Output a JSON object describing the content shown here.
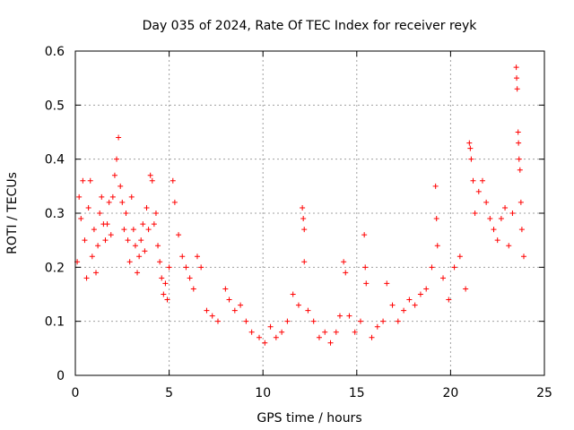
{
  "chart_data": {
    "type": "scatter",
    "title": "Day 035 of 2024, Rate Of TEC Index for receiver reyk",
    "xlabel": "GPS time / hours",
    "ylabel": "ROTI / TECUs",
    "xlim": [
      0,
      25
    ],
    "ylim": [
      0,
      0.6
    ],
    "grid": true,
    "marker": "plus",
    "series_color": "#ff0000",
    "x_ticks": [
      0,
      5,
      10,
      15,
      20,
      25
    ],
    "x_tick_labels": [
      "0",
      "5",
      "10",
      "15",
      "20",
      "25"
    ],
    "y_ticks": [
      0,
      0.1,
      0.2,
      0.3,
      0.4,
      0.5,
      0.6
    ],
    "y_tick_labels": [
      "0",
      "0.1",
      "0.2",
      "0.3",
      "0.4",
      "0.5",
      "0.6"
    ],
    "series": [
      {
        "name": "ROTI",
        "points": [
          [
            0.1,
            0.21
          ],
          [
            0.2,
            0.33
          ],
          [
            0.3,
            0.29
          ],
          [
            0.4,
            0.36
          ],
          [
            0.5,
            0.25
          ],
          [
            0.6,
            0.18
          ],
          [
            0.7,
            0.31
          ],
          [
            0.8,
            0.36
          ],
          [
            0.9,
            0.22
          ],
          [
            1.0,
            0.27
          ],
          [
            1.1,
            0.19
          ],
          [
            1.2,
            0.24
          ],
          [
            1.3,
            0.3
          ],
          [
            1.4,
            0.33
          ],
          [
            1.5,
            0.28
          ],
          [
            1.6,
            0.25
          ],
          [
            1.7,
            0.28
          ],
          [
            1.8,
            0.32
          ],
          [
            1.9,
            0.26
          ],
          [
            2.0,
            0.33
          ],
          [
            2.1,
            0.37
          ],
          [
            2.2,
            0.4
          ],
          [
            2.3,
            0.44
          ],
          [
            2.4,
            0.35
          ],
          [
            2.5,
            0.32
          ],
          [
            2.6,
            0.27
          ],
          [
            2.7,
            0.3
          ],
          [
            2.8,
            0.25
          ],
          [
            2.9,
            0.21
          ],
          [
            3.0,
            0.33
          ],
          [
            3.1,
            0.27
          ],
          [
            3.2,
            0.24
          ],
          [
            3.3,
            0.19
          ],
          [
            3.4,
            0.22
          ],
          [
            3.5,
            0.25
          ],
          [
            3.6,
            0.28
          ],
          [
            3.7,
            0.23
          ],
          [
            3.8,
            0.31
          ],
          [
            3.9,
            0.27
          ],
          [
            4.0,
            0.37
          ],
          [
            4.1,
            0.36
          ],
          [
            4.2,
            0.28
          ],
          [
            4.3,
            0.3
          ],
          [
            4.4,
            0.24
          ],
          [
            4.5,
            0.21
          ],
          [
            4.6,
            0.18
          ],
          [
            4.7,
            0.15
          ],
          [
            4.8,
            0.17
          ],
          [
            4.9,
            0.14
          ],
          [
            5.0,
            0.2
          ],
          [
            5.2,
            0.36
          ],
          [
            5.3,
            0.32
          ],
          [
            5.5,
            0.26
          ],
          [
            5.7,
            0.22
          ],
          [
            5.9,
            0.2
          ],
          [
            6.1,
            0.18
          ],
          [
            6.3,
            0.16
          ],
          [
            6.5,
            0.22
          ],
          [
            6.7,
            0.2
          ],
          [
            7.0,
            0.12
          ],
          [
            7.3,
            0.11
          ],
          [
            7.6,
            0.1
          ],
          [
            8.0,
            0.16
          ],
          [
            8.2,
            0.14
          ],
          [
            8.5,
            0.12
          ],
          [
            8.8,
            0.13
          ],
          [
            9.1,
            0.1
          ],
          [
            9.4,
            0.08
          ],
          [
            9.8,
            0.07
          ],
          [
            10.1,
            0.06
          ],
          [
            10.4,
            0.09
          ],
          [
            10.7,
            0.07
          ],
          [
            11.0,
            0.08
          ],
          [
            11.3,
            0.1
          ],
          [
            11.6,
            0.15
          ],
          [
            11.9,
            0.13
          ],
          [
            12.1,
            0.31
          ],
          [
            12.15,
            0.29
          ],
          [
            12.2,
            0.27
          ],
          [
            12.2,
            0.21
          ],
          [
            12.4,
            0.12
          ],
          [
            12.7,
            0.1
          ],
          [
            13.0,
            0.07
          ],
          [
            13.3,
            0.08
          ],
          [
            13.6,
            0.06
          ],
          [
            13.9,
            0.08
          ],
          [
            14.1,
            0.11
          ],
          [
            14.3,
            0.21
          ],
          [
            14.4,
            0.19
          ],
          [
            14.6,
            0.11
          ],
          [
            14.9,
            0.08
          ],
          [
            15.2,
            0.1
          ],
          [
            15.4,
            0.26
          ],
          [
            15.45,
            0.2
          ],
          [
            15.5,
            0.17
          ],
          [
            15.8,
            0.07
          ],
          [
            16.1,
            0.09
          ],
          [
            16.4,
            0.1
          ],
          [
            16.6,
            0.17
          ],
          [
            16.9,
            0.13
          ],
          [
            17.2,
            0.1
          ],
          [
            17.5,
            0.12
          ],
          [
            17.8,
            0.14
          ],
          [
            18.1,
            0.13
          ],
          [
            18.4,
            0.15
          ],
          [
            18.7,
            0.16
          ],
          [
            19.0,
            0.2
          ],
          [
            19.2,
            0.35
          ],
          [
            19.25,
            0.29
          ],
          [
            19.3,
            0.24
          ],
          [
            19.6,
            0.18
          ],
          [
            19.9,
            0.14
          ],
          [
            20.2,
            0.2
          ],
          [
            20.5,
            0.22
          ],
          [
            20.8,
            0.16
          ],
          [
            21.0,
            0.43
          ],
          [
            21.05,
            0.42
          ],
          [
            21.1,
            0.4
          ],
          [
            21.2,
            0.36
          ],
          [
            21.3,
            0.3
          ],
          [
            21.5,
            0.34
          ],
          [
            21.7,
            0.36
          ],
          [
            21.9,
            0.32
          ],
          [
            22.1,
            0.29
          ],
          [
            22.3,
            0.27
          ],
          [
            22.5,
            0.25
          ],
          [
            22.7,
            0.29
          ],
          [
            22.9,
            0.31
          ],
          [
            23.1,
            0.24
          ],
          [
            23.3,
            0.3
          ],
          [
            23.5,
            0.57
          ],
          [
            23.52,
            0.55
          ],
          [
            23.55,
            0.53
          ],
          [
            23.6,
            0.45
          ],
          [
            23.62,
            0.43
          ],
          [
            23.65,
            0.4
          ],
          [
            23.7,
            0.38
          ],
          [
            23.75,
            0.32
          ],
          [
            23.8,
            0.27
          ],
          [
            23.9,
            0.22
          ]
        ]
      }
    ]
  }
}
